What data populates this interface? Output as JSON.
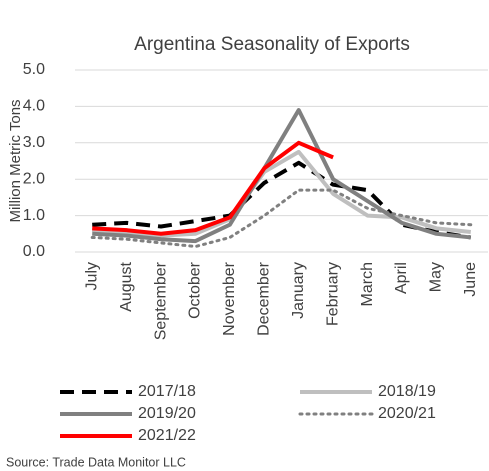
{
  "chart_data": {
    "type": "line",
    "title": "Argentina Seasonality of Exports",
    "y_axis_label": "Million Metric Tons",
    "source": "Source: Trade Data Monitor LLC",
    "categories": [
      "July",
      "August",
      "September",
      "October",
      "November",
      "December",
      "January",
      "February",
      "March",
      "April",
      "May",
      "June"
    ],
    "ylim": [
      0,
      5
    ],
    "yticks": [
      {
        "value": 0,
        "label": "0.0"
      },
      {
        "value": 1,
        "label": "1.0"
      },
      {
        "value": 2,
        "label": "2.0"
      },
      {
        "value": 3,
        "label": "3.0"
      },
      {
        "value": 4,
        "label": "4.0"
      },
      {
        "value": 5,
        "label": "5.0"
      }
    ],
    "grid": true,
    "legend": "bottom",
    "series": [
      {
        "name": "2017/18",
        "color": "#000000",
        "dash": "dashed",
        "values": [
          0.75,
          0.8,
          0.7,
          0.85,
          1.0,
          1.9,
          2.45,
          1.85,
          1.7,
          0.75,
          0.55,
          0.4
        ]
      },
      {
        "name": "2018/19",
        "color": "#bfbfbf",
        "dash": "solid",
        "values": [
          0.6,
          0.55,
          0.45,
          0.5,
          0.9,
          2.2,
          2.75,
          1.6,
          1.0,
          0.95,
          0.65,
          0.55
        ]
      },
      {
        "name": "2019/20",
        "color": "#808080",
        "dash": "solid",
        "values": [
          0.5,
          0.45,
          0.35,
          0.3,
          0.75,
          2.3,
          3.9,
          2.0,
          1.4,
          0.8,
          0.5,
          0.4
        ]
      },
      {
        "name": "2020/21",
        "color": "#808080",
        "dash": "dotted",
        "values": [
          0.4,
          0.35,
          0.25,
          0.15,
          0.4,
          1.0,
          1.7,
          1.7,
          1.2,
          1.0,
          0.8,
          0.75
        ]
      },
      {
        "name": "2021/22",
        "color": "#ff0000",
        "dash": "solid",
        "values": [
          0.65,
          0.6,
          0.5,
          0.6,
          0.95,
          2.3,
          3.0,
          2.6,
          null,
          null,
          null,
          null
        ]
      }
    ]
  }
}
